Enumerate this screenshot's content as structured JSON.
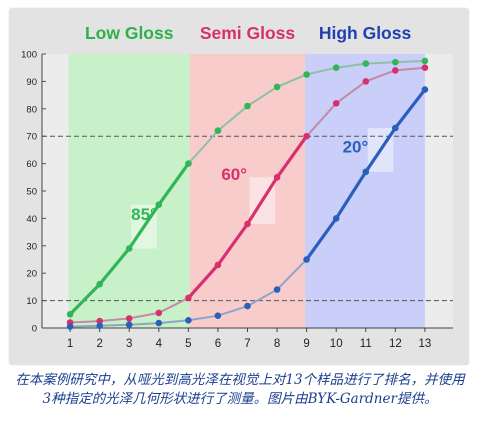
{
  "chart_data": {
    "type": "line",
    "title": "",
    "xlabel": "",
    "ylabel": "",
    "x": [
      1,
      2,
      3,
      4,
      5,
      6,
      7,
      8,
      9,
      10,
      11,
      12,
      13
    ],
    "xlim": [
      0.05,
      13.95
    ],
    "ylim": [
      0,
      100
    ],
    "yticks": [
      0,
      10,
      20,
      30,
      40,
      50,
      60,
      70,
      80,
      90,
      100
    ],
    "grid": false,
    "reference_lines": [
      10,
      70
    ],
    "regions": [
      {
        "label": "Low Gloss",
        "x_range": [
          0.95,
          5.05
        ],
        "fill": "#c9f1c9",
        "label_color": "#2eb04a"
      },
      {
        "label": "Semi Gloss",
        "x_range": [
          5.05,
          8.95
        ],
        "fill": "#f9cccc",
        "label_color": "#d8306e"
      },
      {
        "label": "High Gloss",
        "x_range": [
          8.95,
          13.0
        ],
        "fill": "#c9cff9",
        "label_color": "#2040b0"
      }
    ],
    "series": [
      {
        "name": "85°",
        "color": "#30b558",
        "dim_color": "#8ec0a6",
        "bold_range": [
          1,
          5
        ],
        "values": [
          5,
          16,
          29,
          45,
          60,
          72,
          81,
          88,
          92.5,
          95,
          96.5,
          97,
          97.5
        ]
      },
      {
        "name": "60°",
        "color": "#d8306e",
        "dim_color": "#c48aa6",
        "bold_range": [
          5,
          9
        ],
        "values": [
          2,
          2.5,
          3.5,
          5.5,
          11,
          23,
          38,
          55,
          70,
          82,
          90,
          94,
          95
        ]
      },
      {
        "name": "20°",
        "color": "#2a5fbc",
        "dim_color": "#8ea4c8",
        "bold_range": [
          9,
          13
        ],
        "values": [
          0.5,
          0.8,
          1.2,
          1.8,
          2.8,
          4.5,
          8,
          14,
          25,
          40,
          57,
          73,
          87
        ]
      }
    ]
  },
  "caption": "在本案例研究中，从哑光到高光泽在视觉上对13个样品进行了排名，并使用3种指定的光泽几何形状进行了测量。图片由BYK-Gardner提供。"
}
